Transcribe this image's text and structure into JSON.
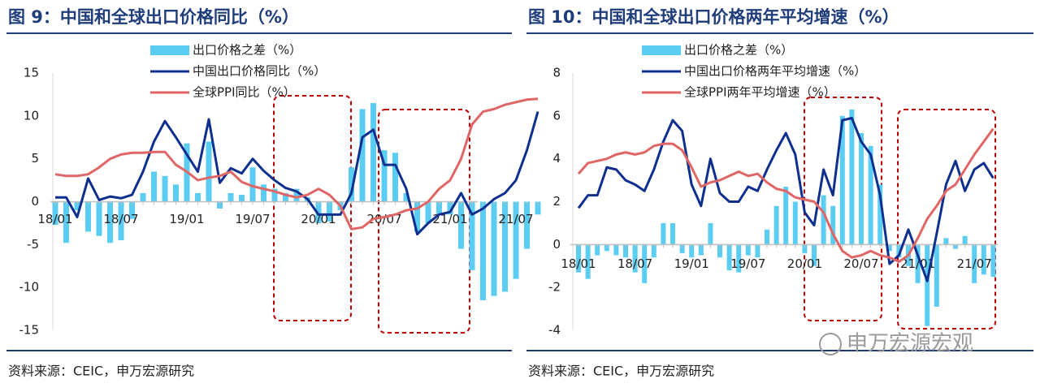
{
  "watermark": "申万宏源宏观",
  "chart_data": [
    {
      "type": "combo",
      "title": "图 9：中国和全球出口价格同比（%）",
      "source": "资料来源：CEIC，申万宏源研究",
      "categories": [
        "18/01",
        null,
        null,
        null,
        null,
        null,
        "18/07",
        null,
        null,
        null,
        null,
        null,
        "19/01",
        null,
        null,
        null,
        null,
        null,
        "19/07",
        null,
        null,
        null,
        null,
        null,
        "20/01",
        null,
        null,
        null,
        null,
        null,
        "20/07",
        null,
        null,
        null,
        null,
        null,
        "21/01",
        null,
        null,
        null,
        null,
        null,
        "21/07",
        null,
        null
      ],
      "ylim": [
        -15,
        15
      ],
      "yticks": [
        -15,
        -10,
        -5,
        0,
        5,
        10,
        15
      ],
      "series": [
        {
          "name": "出口价格之差（%）",
          "type": "bar",
          "color": "#5ccdf2",
          "values": [
            -2.7,
            -4.8,
            -1,
            -3.5,
            -4,
            -4.8,
            -4.5,
            -2,
            1,
            3.5,
            3,
            2,
            6.8,
            1,
            7,
            -0.8,
            1,
            0.8,
            4,
            2,
            1.5,
            1,
            1.5,
            0.5,
            -2.5,
            -2.3,
            -1,
            4,
            10.8,
            11.5,
            6,
            5.7,
            1,
            -3.5,
            -2.5,
            -1.5,
            -1.5,
            -5.5,
            -8,
            -11.5,
            -11,
            -10.5,
            -9,
            -5.5,
            -1.5
          ]
        },
        {
          "name": "中国出口价格同比（%）",
          "type": "line",
          "color": "#0f2f8f",
          "values": [
            0.5,
            0.5,
            -1.8,
            2.7,
            0.2,
            0.6,
            0.4,
            0.8,
            3.5,
            7,
            9.4,
            7.5,
            5.5,
            3.5,
            9.6,
            2.2,
            3.9,
            3.3,
            5,
            3.6,
            2.5,
            1.6,
            1.2,
            0.3,
            -1.5,
            -1.5,
            -1.5,
            1,
            7.5,
            8.4,
            4.3,
            4.3,
            1.5,
            -3.8,
            -2.5,
            -1.5,
            -1.2,
            1,
            -1.5,
            -0.8,
            0.3,
            1,
            2.5,
            6,
            10.5
          ]
        },
        {
          "name": "全球PPI同比（%）",
          "type": "line",
          "color": "#e06666",
          "values": [
            3.2,
            3,
            3,
            3.2,
            4,
            5,
            5.5,
            5.7,
            5.7,
            5.8,
            5.8,
            4.3,
            3.5,
            2.5,
            2.8,
            3,
            3.5,
            2.3,
            1.8,
            1.5,
            1.2,
            0.8,
            0.5,
            0.8,
            1.5,
            0.8,
            -0.5,
            -3.2,
            -3,
            -2,
            -1.8,
            -1.5,
            -1,
            -0.8,
            0,
            1.5,
            2.5,
            5,
            9,
            10.5,
            10.8,
            11.3,
            11.6,
            11.9,
            12
          ]
        }
      ]
    },
    {
      "type": "combo",
      "title": "图 10：中国和全球出口价格两年平均增速（%）",
      "source": "资料来源：CEIC，申万宏源研究",
      "categories": [
        "18/01",
        null,
        null,
        null,
        null,
        null,
        "18/07",
        null,
        null,
        null,
        null,
        null,
        "19/01",
        null,
        null,
        null,
        null,
        null,
        "19/07",
        null,
        null,
        null,
        null,
        null,
        "20/01",
        null,
        null,
        null,
        null,
        null,
        "20/07",
        null,
        null,
        null,
        null,
        null,
        "21/01",
        null,
        null,
        null,
        null,
        null,
        "21/07",
        null,
        null
      ],
      "ylim": [
        -4,
        8
      ],
      "yticks": [
        -4,
        -2,
        0,
        2,
        4,
        6,
        8
      ],
      "series": [
        {
          "name": "出口价格之差（%）",
          "type": "bar",
          "color": "#5ccdf2",
          "values": [
            -1.3,
            -1.6,
            -0.5,
            -0.3,
            -0.5,
            -0.6,
            -1.3,
            -1.8,
            -0.6,
            1,
            1,
            -0.4,
            -0.6,
            -0.5,
            1,
            -0.6,
            -1.2,
            -1.3,
            -0.5,
            -0.6,
            0.7,
            1.8,
            2.7,
            2,
            -0.4,
            -1,
            2.3,
            1.8,
            6,
            6.3,
            5.2,
            4.6,
            2.8,
            -0.3,
            -0.6,
            -1,
            -1.8,
            -3.8,
            -2.9,
            0.3,
            -0.2,
            0.4,
            -1.8,
            -1.4,
            -1.5
          ]
        },
        {
          "name": "中国出口价格两年平均增速（%）",
          "type": "line",
          "color": "#0f2f8f",
          "values": [
            1.7,
            2.3,
            2.3,
            3.6,
            3.5,
            3,
            2.8,
            2.5,
            3.5,
            4.8,
            5.8,
            5.3,
            2.8,
            1.8,
            4,
            2.4,
            2,
            2,
            2.7,
            2.5,
            3.5,
            4.4,
            5.2,
            4.2,
            1.5,
            0.9,
            3.5,
            2.3,
            5.8,
            5.9,
            4.8,
            4.2,
            2.3,
            -0.9,
            -0.5,
            0.7,
            -0.5,
            -1.7,
            0.5,
            2.8,
            3.9,
            2.5,
            3.5,
            3.8,
            3.1
          ]
        },
        {
          "name": "全球PPI两年平均增速（%）",
          "type": "line",
          "color": "#e06666",
          "values": [
            3.3,
            3.8,
            3.9,
            4,
            4.2,
            4.3,
            4.2,
            4.3,
            4.6,
            4.7,
            4.7,
            4.4,
            3.6,
            2.7,
            2.9,
            3,
            3.2,
            3.4,
            3.2,
            3.3,
            2.9,
            2.6,
            2.5,
            2.2,
            2.1,
            2,
            1.5,
            0.5,
            -0.3,
            -0.6,
            -0.5,
            -0.3,
            -0.5,
            -0.6,
            -0.8,
            -0.5,
            0.3,
            1.2,
            1.8,
            2.5,
            2.8,
            3.5,
            4.2,
            4.8,
            5.4
          ]
        }
      ]
    }
  ]
}
